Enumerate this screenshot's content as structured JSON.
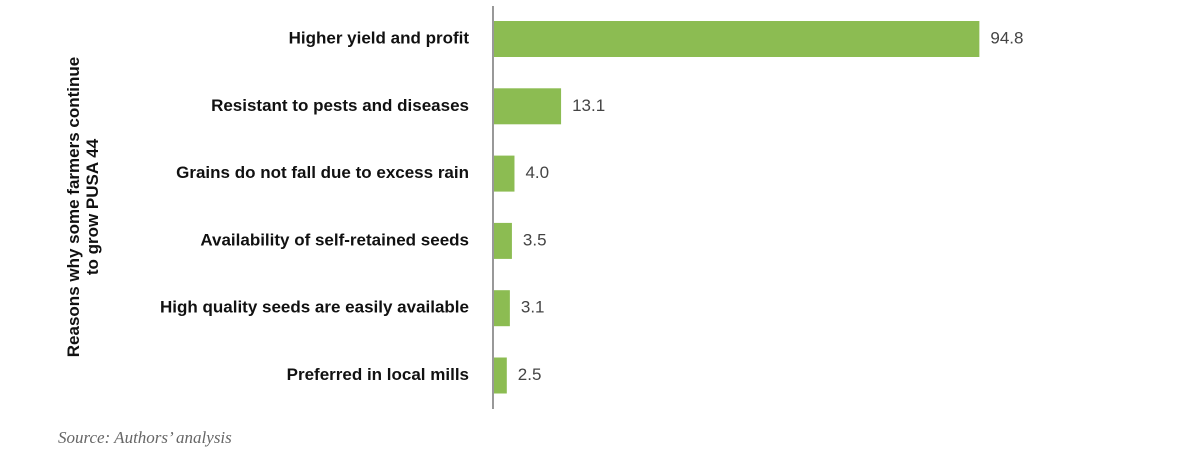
{
  "chart_data": {
    "type": "bar",
    "orientation": "horizontal",
    "categories": [
      "Higher yield and profit",
      "Resistant to pests and diseases",
      "Grains do not fall due to excess rain",
      "Availability of self-retained seeds",
      "High quality seeds are easily available",
      "Preferred in local mills"
    ],
    "values": [
      94.8,
      13.1,
      4.0,
      3.5,
      3.1,
      2.5
    ],
    "value_labels": [
      "94.8",
      "13.1",
      "4.0",
      "3.5",
      "3.1",
      "2.5"
    ],
    "title": "",
    "ylabel_lines": [
      "Reasons why some farmers continue",
      "to grow PUSA 44"
    ],
    "xlabel": "",
    "xlim": [
      0,
      100
    ],
    "grid": false,
    "bar_color": "#8cbc52"
  },
  "source": "Source: Authors’ analysis"
}
